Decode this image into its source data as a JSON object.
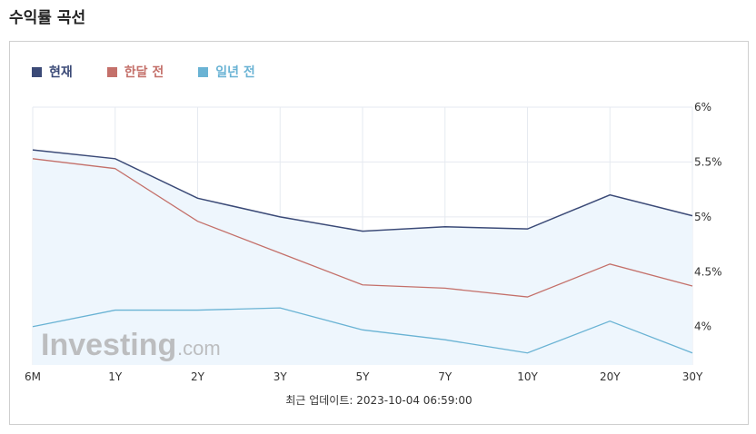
{
  "page": {
    "title": "수익률 곡선"
  },
  "footer": {
    "updated": "최근 업데이트: 2023-10-04 06:59:00"
  },
  "watermark": {
    "brand": "Investing",
    "suffix": ".com"
  },
  "chart_data": {
    "type": "line",
    "categories": [
      "6M",
      "1Y",
      "2Y",
      "3Y",
      "5Y",
      "7Y",
      "10Y",
      "20Y",
      "30Y"
    ],
    "series": [
      {
        "name": "현재",
        "color": "#3b4a77",
        "values": [
          5.61,
          5.53,
          5.17,
          5.0,
          4.87,
          4.91,
          4.89,
          5.2,
          5.01
        ]
      },
      {
        "name": "한달 전",
        "color": "#c4706a",
        "values": [
          5.53,
          5.44,
          4.96,
          4.67,
          4.38,
          4.35,
          4.27,
          4.57,
          4.37
        ]
      },
      {
        "name": "일년 전",
        "color": "#6ab3d4",
        "values": [
          4.0,
          4.15,
          4.15,
          4.17,
          3.97,
          3.88,
          3.76,
          4.05,
          3.76
        ]
      }
    ],
    "yticks": [
      "4%",
      "4.5%",
      "5%",
      "5.5%",
      "6%"
    ],
    "ytick_values": [
      4.0,
      4.5,
      5.0,
      5.5,
      6.0
    ],
    "ylim": [
      3.65,
      6.0
    ],
    "grid": true,
    "legend_position": "top-left",
    "area_fill_series": "현재",
    "area_fill_color": "#eef6fd"
  }
}
